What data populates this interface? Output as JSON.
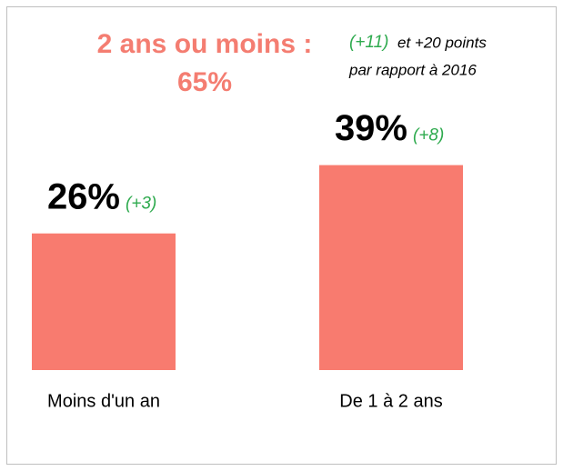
{
  "chart_data": {
    "type": "bar",
    "title_lines": [
      "2 ans ou moins :",
      "65%"
    ],
    "annotation": {
      "change": "(+11)",
      "text_lines": [
        "et +20 points",
        "par rapport à 2016"
      ]
    },
    "categories": [
      "Moins d'un an",
      "De 1 à 2 ans"
    ],
    "values": [
      26,
      39
    ],
    "value_labels": [
      "26%",
      "39%"
    ],
    "changes": [
      "(+3)",
      "(+8)"
    ],
    "color": "#f87b6f",
    "title_color": "#f47d71",
    "change_color": "#2eaa4e"
  }
}
